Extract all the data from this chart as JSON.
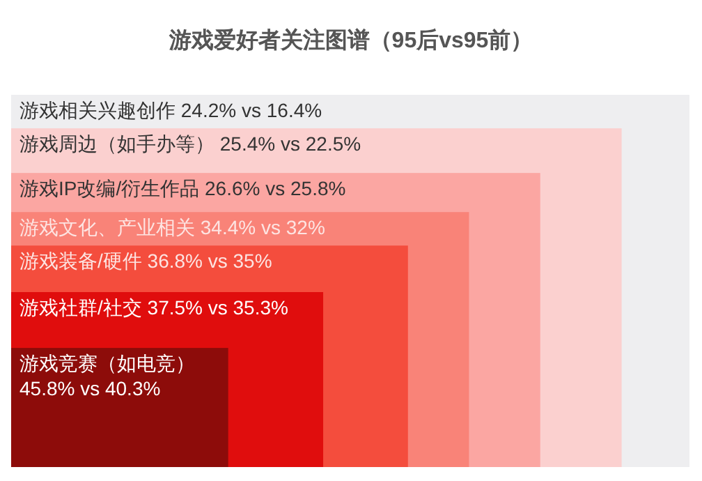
{
  "chart_data": {
    "type": "other",
    "title": "游戏爱好者关注图谱（95后vs95前）",
    "categories": [
      "游戏相关兴趣创作",
      "游戏周边（如手办等）",
      "游戏IP改编/衍生作品",
      "游戏文化、产业相关",
      "游戏装备/硬件",
      "游戏社群/社交",
      "游戏竞赛（如电竞）"
    ],
    "series": [
      {
        "values": [
          24.2,
          25.4,
          26.6,
          34.4,
          36.8,
          37.5,
          45.8
        ],
        "value_labels": [
          "24.2%",
          "25.4%",
          "26.6%",
          "34.4%",
          "36.8%",
          "37.5%",
          "45.8%"
        ],
        "colors": [
          "#eeeef0",
          "#fbd0cf",
          "#fba6a2",
          "#f98378",
          "#f44d3d",
          "#e00d0d",
          "#8d0c0a"
        ]
      },
      {
        "values": [
          16.4,
          22.5,
          25.8,
          32,
          35,
          35.3,
          40.3
        ],
        "value_labels": [
          "vs 16.4%",
          "vs 22.5%",
          "vs 25.8%",
          "vs 32%",
          "vs 35%",
          "vs 35.3%",
          "vs 40.3%"
        ]
      }
    ]
  }
}
